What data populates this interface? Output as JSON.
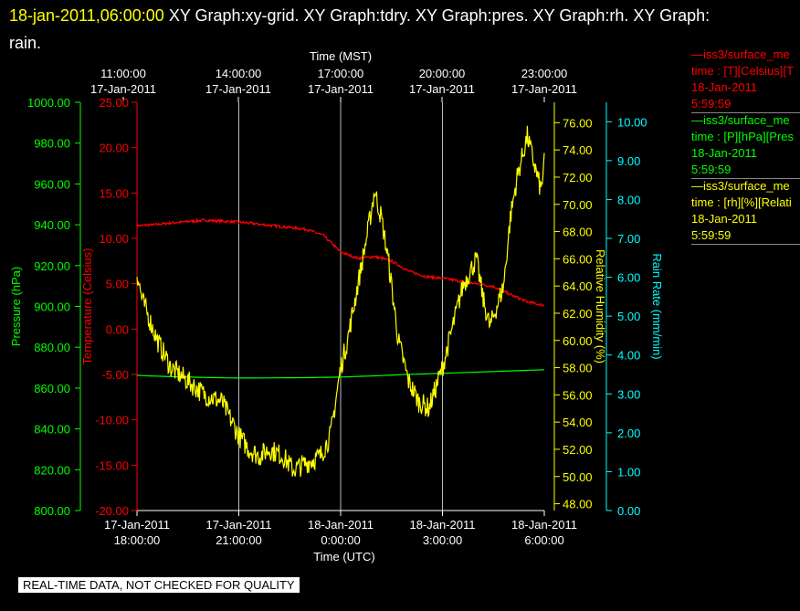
{
  "header": {
    "timestamp": "18-jan-2011,06:00:00",
    "graphs": "XY Graph:xy-grid.  XY Graph:tdry.  XY Graph:pres.  XY Graph:rh.  XY Graph:",
    "graphs_cont": "rain."
  },
  "footer": {
    "quality_notice": "REAL-TIME DATA, NOT CHECKED FOR QUALITY"
  },
  "legend": [
    {
      "line1": "—iss3/surface_me",
      "line2": "time : [T][Celsius][T",
      "date": "18-Jan-2011",
      "time": "5:59:59",
      "color": "#ff0000"
    },
    {
      "line1": "—iss3/surface_me",
      "line2": "time : [P][hPa][Pres",
      "date": "18-Jan-2011",
      "time": "5:59:59",
      "color": "#00ff00"
    },
    {
      "line1": "—iss3/surface_me",
      "line2": "time : [rh][%][Relati",
      "date": "18-Jan-2011",
      "time": "5:59:59",
      "color": "#ffff00"
    }
  ],
  "chart_data": {
    "type": "line",
    "top_axis": {
      "label": "Time (MST)",
      "ticks": [
        {
          "time": "11:00:00",
          "date": "17-Jan-2011"
        },
        {
          "time": "14:00:00",
          "date": "17-Jan-2011"
        },
        {
          "time": "17:00:00",
          "date": "17-Jan-2011"
        },
        {
          "time": "20:00:00",
          "date": "17-Jan-2011"
        },
        {
          "time": "23:00:00",
          "date": "17-Jan-2011"
        }
      ]
    },
    "bottom_axis": {
      "label": "Time (UTC)",
      "ticks": [
        {
          "date": "17-Jan-2011",
          "time": "18:00:00"
        },
        {
          "date": "17-Jan-2011",
          "time": "21:00:00"
        },
        {
          "date": "18-Jan-2011",
          "time": "0:00:00"
        },
        {
          "date": "18-Jan-2011",
          "time": "3:00:00"
        },
        {
          "date": "18-Jan-2011",
          "time": "6:00:00"
        }
      ]
    },
    "x_range_utc": [
      "2011-01-17 18:00",
      "2011-01-18 06:00"
    ],
    "x_unit": "hours since 2011-01-17 18:00 UTC",
    "grid": true,
    "axes": {
      "pressure": {
        "label": "Pressure (hPa)",
        "color": "#00ff00",
        "range": [
          800,
          1000
        ],
        "ticks": [
          "800.00",
          "820.00",
          "840.00",
          "860.00",
          "880.00",
          "900.00",
          "920.00",
          "940.00",
          "960.00",
          "980.00",
          "1000.00"
        ]
      },
      "temperature": {
        "label": "Temperature (Celsius)",
        "color": "#ff0000",
        "range": [
          -20,
          25
        ],
        "ticks": [
          "-20.00",
          "-15.00",
          "-10.00",
          "-5.00",
          "0.00",
          "5.00",
          "10.00",
          "15.00",
          "20.00",
          "25.00"
        ]
      },
      "rh": {
        "label": "Relative Humidity (%)",
        "color": "#ffff00",
        "range": [
          47.5,
          77.5
        ],
        "ticks": [
          "48.00",
          "50.00",
          "52.00",
          "54.00",
          "56.00",
          "58.00",
          "60.00",
          "62.00",
          "64.00",
          "66.00",
          "68.00",
          "70.00",
          "72.00",
          "74.00",
          "76.00"
        ]
      },
      "rain": {
        "label": "Rain Rate (mm/min)",
        "color": "#00ffff",
        "range": [
          0,
          10.5
        ],
        "ticks": [
          "0.00",
          "1.00",
          "2.00",
          "3.00",
          "4.00",
          "5.00",
          "6.00",
          "7.00",
          "8.00",
          "9.00",
          "10.00"
        ]
      }
    },
    "series": [
      {
        "name": "Temperature",
        "axis": "temperature",
        "color": "#ff0000",
        "noise": 0.15,
        "x": [
          0,
          0.5,
          1,
          2,
          3,
          4,
          5,
          5.5,
          6,
          6.5,
          7,
          7.5,
          8,
          8.5,
          9,
          9.5,
          10,
          10.5,
          11,
          11.5,
          12
        ],
        "y": [
          11.4,
          11.5,
          11.7,
          12.0,
          11.8,
          11.4,
          11.0,
          10.3,
          8.5,
          7.8,
          8.0,
          7.5,
          6.4,
          5.8,
          5.6,
          5.3,
          5.0,
          4.7,
          3.8,
          3.0,
          2.6
        ]
      },
      {
        "name": "Pressure",
        "axis": "pressure",
        "color": "#00ff00",
        "noise": 0,
        "x": [
          0,
          1,
          2,
          3,
          4,
          5,
          6,
          7,
          8,
          9,
          10,
          11,
          12
        ],
        "y": [
          866.2,
          865.6,
          865.2,
          864.9,
          865.0,
          865.1,
          865.4,
          866.0,
          866.7,
          867.2,
          867.8,
          868.4,
          869.0
        ]
      },
      {
        "name": "Relative Humidity",
        "axis": "rh",
        "color": "#ffff00",
        "noise": 0.8,
        "x": [
          0,
          0.15,
          0.3,
          0.6,
          1,
          1.5,
          2,
          2.5,
          2.8,
          3,
          3.3,
          3.6,
          3.9,
          4.3,
          4.6,
          5,
          5.4,
          5.7,
          6,
          6.2,
          6.5,
          6.8,
          7,
          7.2,
          7.4,
          7.7,
          8,
          8.3,
          8.6,
          9,
          9.3,
          9.6,
          10,
          10.2,
          10.4,
          10.6,
          10.8,
          11,
          11.2,
          11.5,
          11.7,
          11.9,
          12
        ],
        "y": [
          65,
          63,
          62,
          60,
          58,
          57,
          56,
          55.5,
          54,
          53,
          52,
          51.5,
          52,
          51.5,
          50.5,
          51,
          51.5,
          53,
          58,
          60,
          64,
          68,
          71,
          69,
          66,
          60,
          57,
          55.5,
          55,
          58,
          61,
          64,
          66,
          63,
          61,
          62.5,
          64,
          69,
          72,
          75,
          73,
          71,
          73
        ]
      }
    ]
  }
}
